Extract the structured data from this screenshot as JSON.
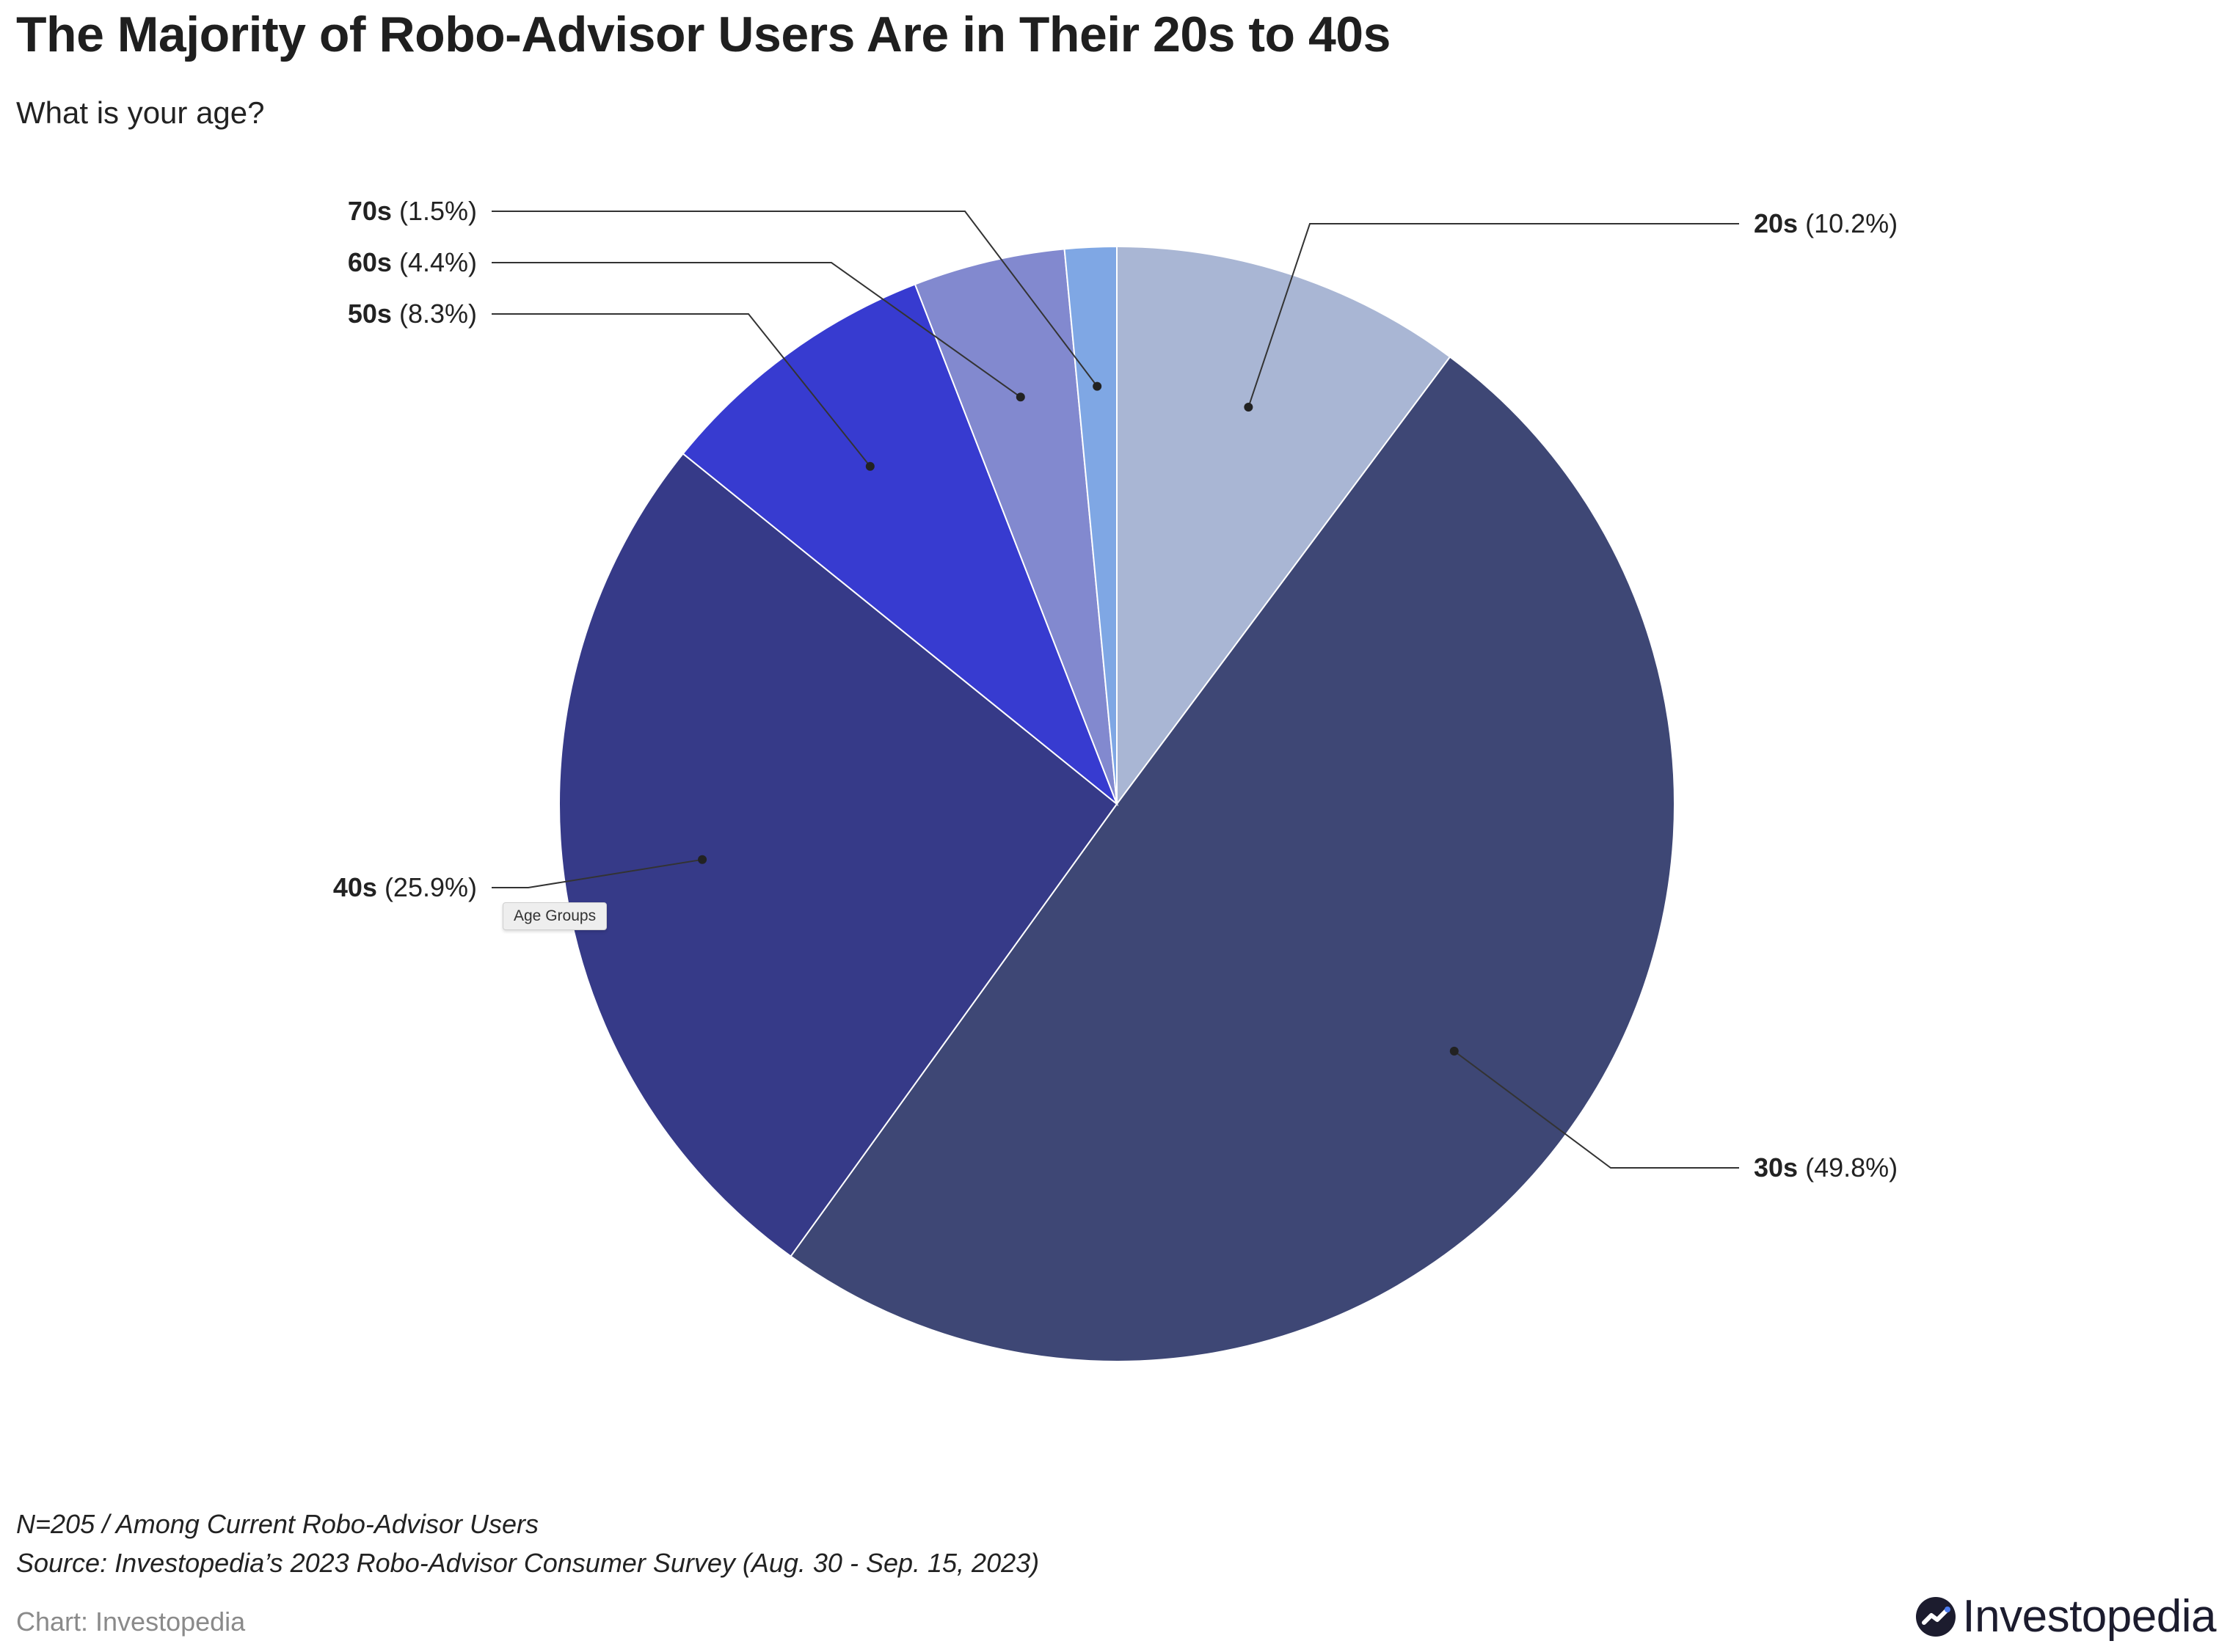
{
  "title": "The Majority of Robo-Advisor Users Are in Their 20s to 40s",
  "subtitle": "What is your age?",
  "tooltip": "Age Groups",
  "notes": {
    "line1": "N=205 / Among Current Robo-Advisor Users",
    "line2": "Source: Investopedia’s 2023 Robo-Advisor Consumer Survey (Aug. 30 - Sep. 15, 2023)"
  },
  "credit": "Chart: Investopedia",
  "brand": {
    "name": "Investopedia",
    "icon": "investopedia-logo-icon"
  },
  "chart_data": {
    "type": "pie",
    "series_label": "Age Groups",
    "categories": [
      "20s",
      "30s",
      "40s",
      "50s",
      "60s",
      "70s"
    ],
    "values": [
      10.2,
      49.8,
      25.9,
      8.3,
      4.4,
      1.5
    ],
    "value_labels": [
      "(10.2%)",
      "(49.8%)",
      "(25.9%)",
      "(8.3%)",
      "(4.4%)",
      "(1.5%)"
    ],
    "colors": [
      "#a9b6d4",
      "#3e4775",
      "#363a88",
      "#373bd0",
      "#8289cf",
      "#7fa7e4"
    ],
    "start_angle": "12 o'clock",
    "direction": "clockwise"
  }
}
